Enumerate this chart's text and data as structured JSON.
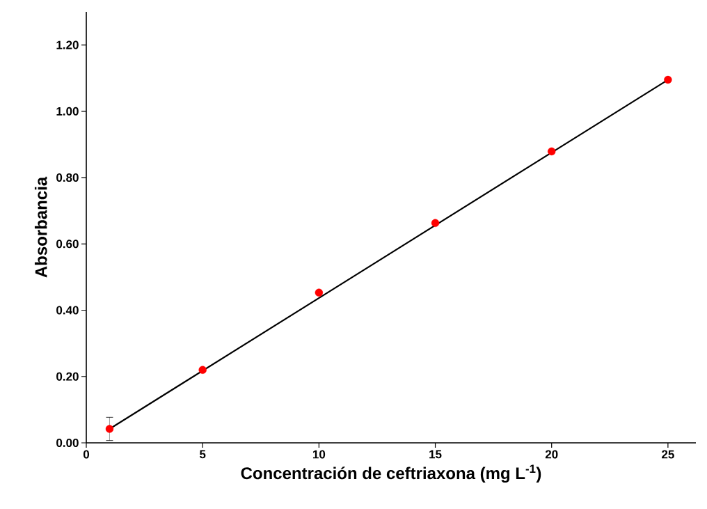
{
  "chart_data": {
    "type": "scatter",
    "xlabel": "Concentración de ceftriaxona (mg L$^{-1}$)",
    "ylabel": "Absorbancia",
    "xlim": [
      0,
      26.2
    ],
    "ylim": [
      0,
      1.3
    ],
    "xticks": [
      0,
      5,
      10,
      15,
      20,
      25
    ],
    "yticks": [
      {
        "value": 0,
        "label": "0.00"
      },
      {
        "value": 0.2,
        "label": "0.20"
      },
      {
        "value": 0.4,
        "label": "0.40"
      },
      {
        "value": 0.6,
        "label": "0.60"
      },
      {
        "value": 0.8,
        "label": "0.80"
      },
      {
        "value": 1.0,
        "label": "1.00"
      },
      {
        "value": 1.2,
        "label": "1.20"
      }
    ],
    "grid": false,
    "marker": "circle",
    "series": [
      {
        "type": "line",
        "color": "#000000",
        "line_style": "solid",
        "x": [
          1,
          25
        ],
        "values": [
          0.042,
          1.095
        ]
      },
      {
        "type": "scatter",
        "color": "#ff0000",
        "x": [
          1,
          5,
          10,
          15,
          20,
          25
        ],
        "values": [
          0.042,
          0.22,
          0.453,
          0.663,
          0.879,
          1.095
        ],
        "errors": [
          0.035,
          null,
          null,
          null,
          null,
          null
        ]
      }
    ]
  }
}
